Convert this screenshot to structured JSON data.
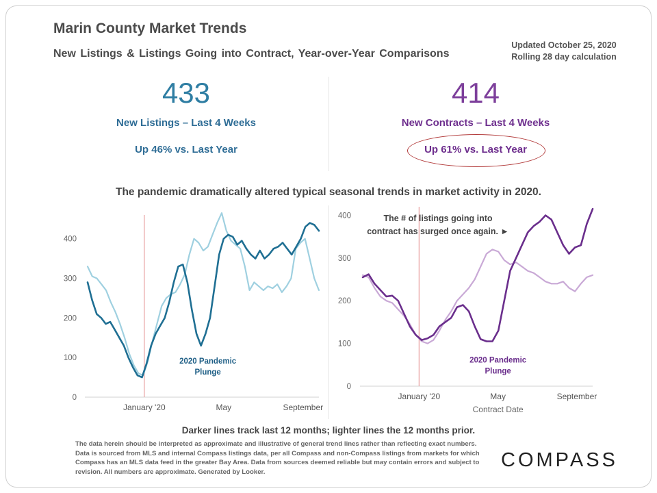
{
  "header": {
    "title": "Marin County Market Trends",
    "subtitle": "New Listings & Listings Going into Contract, Year-over-Year Comparisons",
    "updated_line1": "Updated October 25, 2020",
    "updated_line2": "Rolling 28 day calculation"
  },
  "kpis": {
    "listings": {
      "value": "433",
      "label": "New Listings – Last 4 Weeks",
      "change": "Up 46% vs. Last Year"
    },
    "contracts": {
      "value": "414",
      "label": "New Contracts – Last 4 Weeks",
      "change": "Up 61% vs. Last Year"
    }
  },
  "headline": "The pandemic dramatically altered typical seasonal trends in market activity in 2020.",
  "footnote": "Darker lines track last 12 months; lighter lines the 12 months prior.",
  "disclaimer": "The data herein should be interpreted as approximate and illustrative of general trend lines rather than reflecting exact numbers. Data is sourced from MLS and internal Compass listings data, per all Compass and non-Compass listings from markets for which Compass has an MLS data feed in the greater Bay Area. Data from sources deemed reliable but may contain errors and subject to revision. All numbers are approximate. Generated by Looker.",
  "logo": "COMPASS",
  "colors": {
    "listings_dark": "#1f6f93",
    "listings_light": "#9fd0e0",
    "contracts_dark": "#6a2e8c",
    "contracts_light": "#c9a9d6",
    "pandemic_line": "#e8a0a0"
  },
  "chart_data": [
    {
      "type": "line",
      "title": "",
      "xlabel": "",
      "ylabel": "",
      "ylim": [
        0,
        460
      ],
      "yticks": [
        0,
        100,
        200,
        300,
        400
      ],
      "xlim": [
        0,
        51
      ],
      "xticks": [
        {
          "pos": 12.5,
          "label": "January '20"
        },
        {
          "pos": 30,
          "label": "May"
        },
        {
          "pos": 47.5,
          "label": "September"
        }
      ],
      "grid": false,
      "annotation": {
        "text_line1": "2020 Pandemic",
        "text_line2": "Plunge",
        "x": 26.5,
        "y": 85
      },
      "vline_x": 12.5,
      "series": [
        {
          "name": "",
          "style": "dark",
          "values": [
            290,
            245,
            210,
            200,
            185,
            190,
            170,
            150,
            130,
            100,
            75,
            55,
            50,
            85,
            130,
            160,
            180,
            200,
            240,
            290,
            330,
            335,
            290,
            220,
            160,
            130,
            160,
            200,
            280,
            360,
            400,
            410,
            405,
            385,
            395,
            375,
            360,
            350,
            370,
            350,
            360,
            375,
            380,
            390,
            375,
            360,
            380,
            400,
            430,
            440,
            435,
            420
          ]
        },
        {
          "name": "",
          "style": "light",
          "values": [
            330,
            305,
            300,
            285,
            270,
            240,
            215,
            185,
            150,
            110,
            80,
            60,
            55,
            90,
            140,
            185,
            230,
            250,
            260,
            265,
            285,
            310,
            360,
            400,
            390,
            370,
            380,
            410,
            440,
            465,
            420,
            395,
            385,
            375,
            330,
            270,
            290,
            280,
            270,
            280,
            275,
            285,
            265,
            280,
            300,
            375,
            390,
            400,
            350,
            300,
            270
          ]
        }
      ]
    },
    {
      "type": "line",
      "title": "",
      "xlabel": "Contract Date",
      "ylabel": "",
      "ylim": [
        0,
        420
      ],
      "yticks": [
        0,
        100,
        200,
        300,
        400
      ],
      "xlim": [
        0,
        51
      ],
      "xticks": [
        {
          "pos": 12.5,
          "label": "January '20"
        },
        {
          "pos": 30,
          "label": "May"
        },
        {
          "pos": 47.5,
          "label": "September"
        }
      ],
      "grid": false,
      "annotation": {
        "text_line1": "2020 Pandemic",
        "text_line2": "Plunge",
        "x": 30,
        "y": 55
      },
      "callout": {
        "text_line1": "The # of listings going into",
        "text_line2": "contract has surged once again. ►"
      },
      "vline_x": 12.5,
      "series": [
        {
          "name": "",
          "style": "dark",
          "values": [
            255,
            262,
            240,
            225,
            210,
            212,
            200,
            170,
            140,
            120,
            108,
            112,
            120,
            140,
            150,
            160,
            185,
            190,
            175,
            140,
            110,
            105,
            105,
            130,
            200,
            270,
            300,
            330,
            360,
            375,
            385,
            400,
            390,
            360,
            330,
            310,
            325,
            330,
            380,
            415
          ]
        },
        {
          "name": "",
          "style": "light",
          "values": [
            260,
            255,
            230,
            210,
            200,
            195,
            180,
            165,
            145,
            120,
            105,
            100,
            108,
            130,
            155,
            175,
            200,
            215,
            230,
            250,
            280,
            310,
            320,
            315,
            295,
            285,
            290,
            280,
            270,
            265,
            255,
            245,
            240,
            240,
            245,
            230,
            222,
            240,
            255,
            260
          ]
        }
      ]
    }
  ]
}
